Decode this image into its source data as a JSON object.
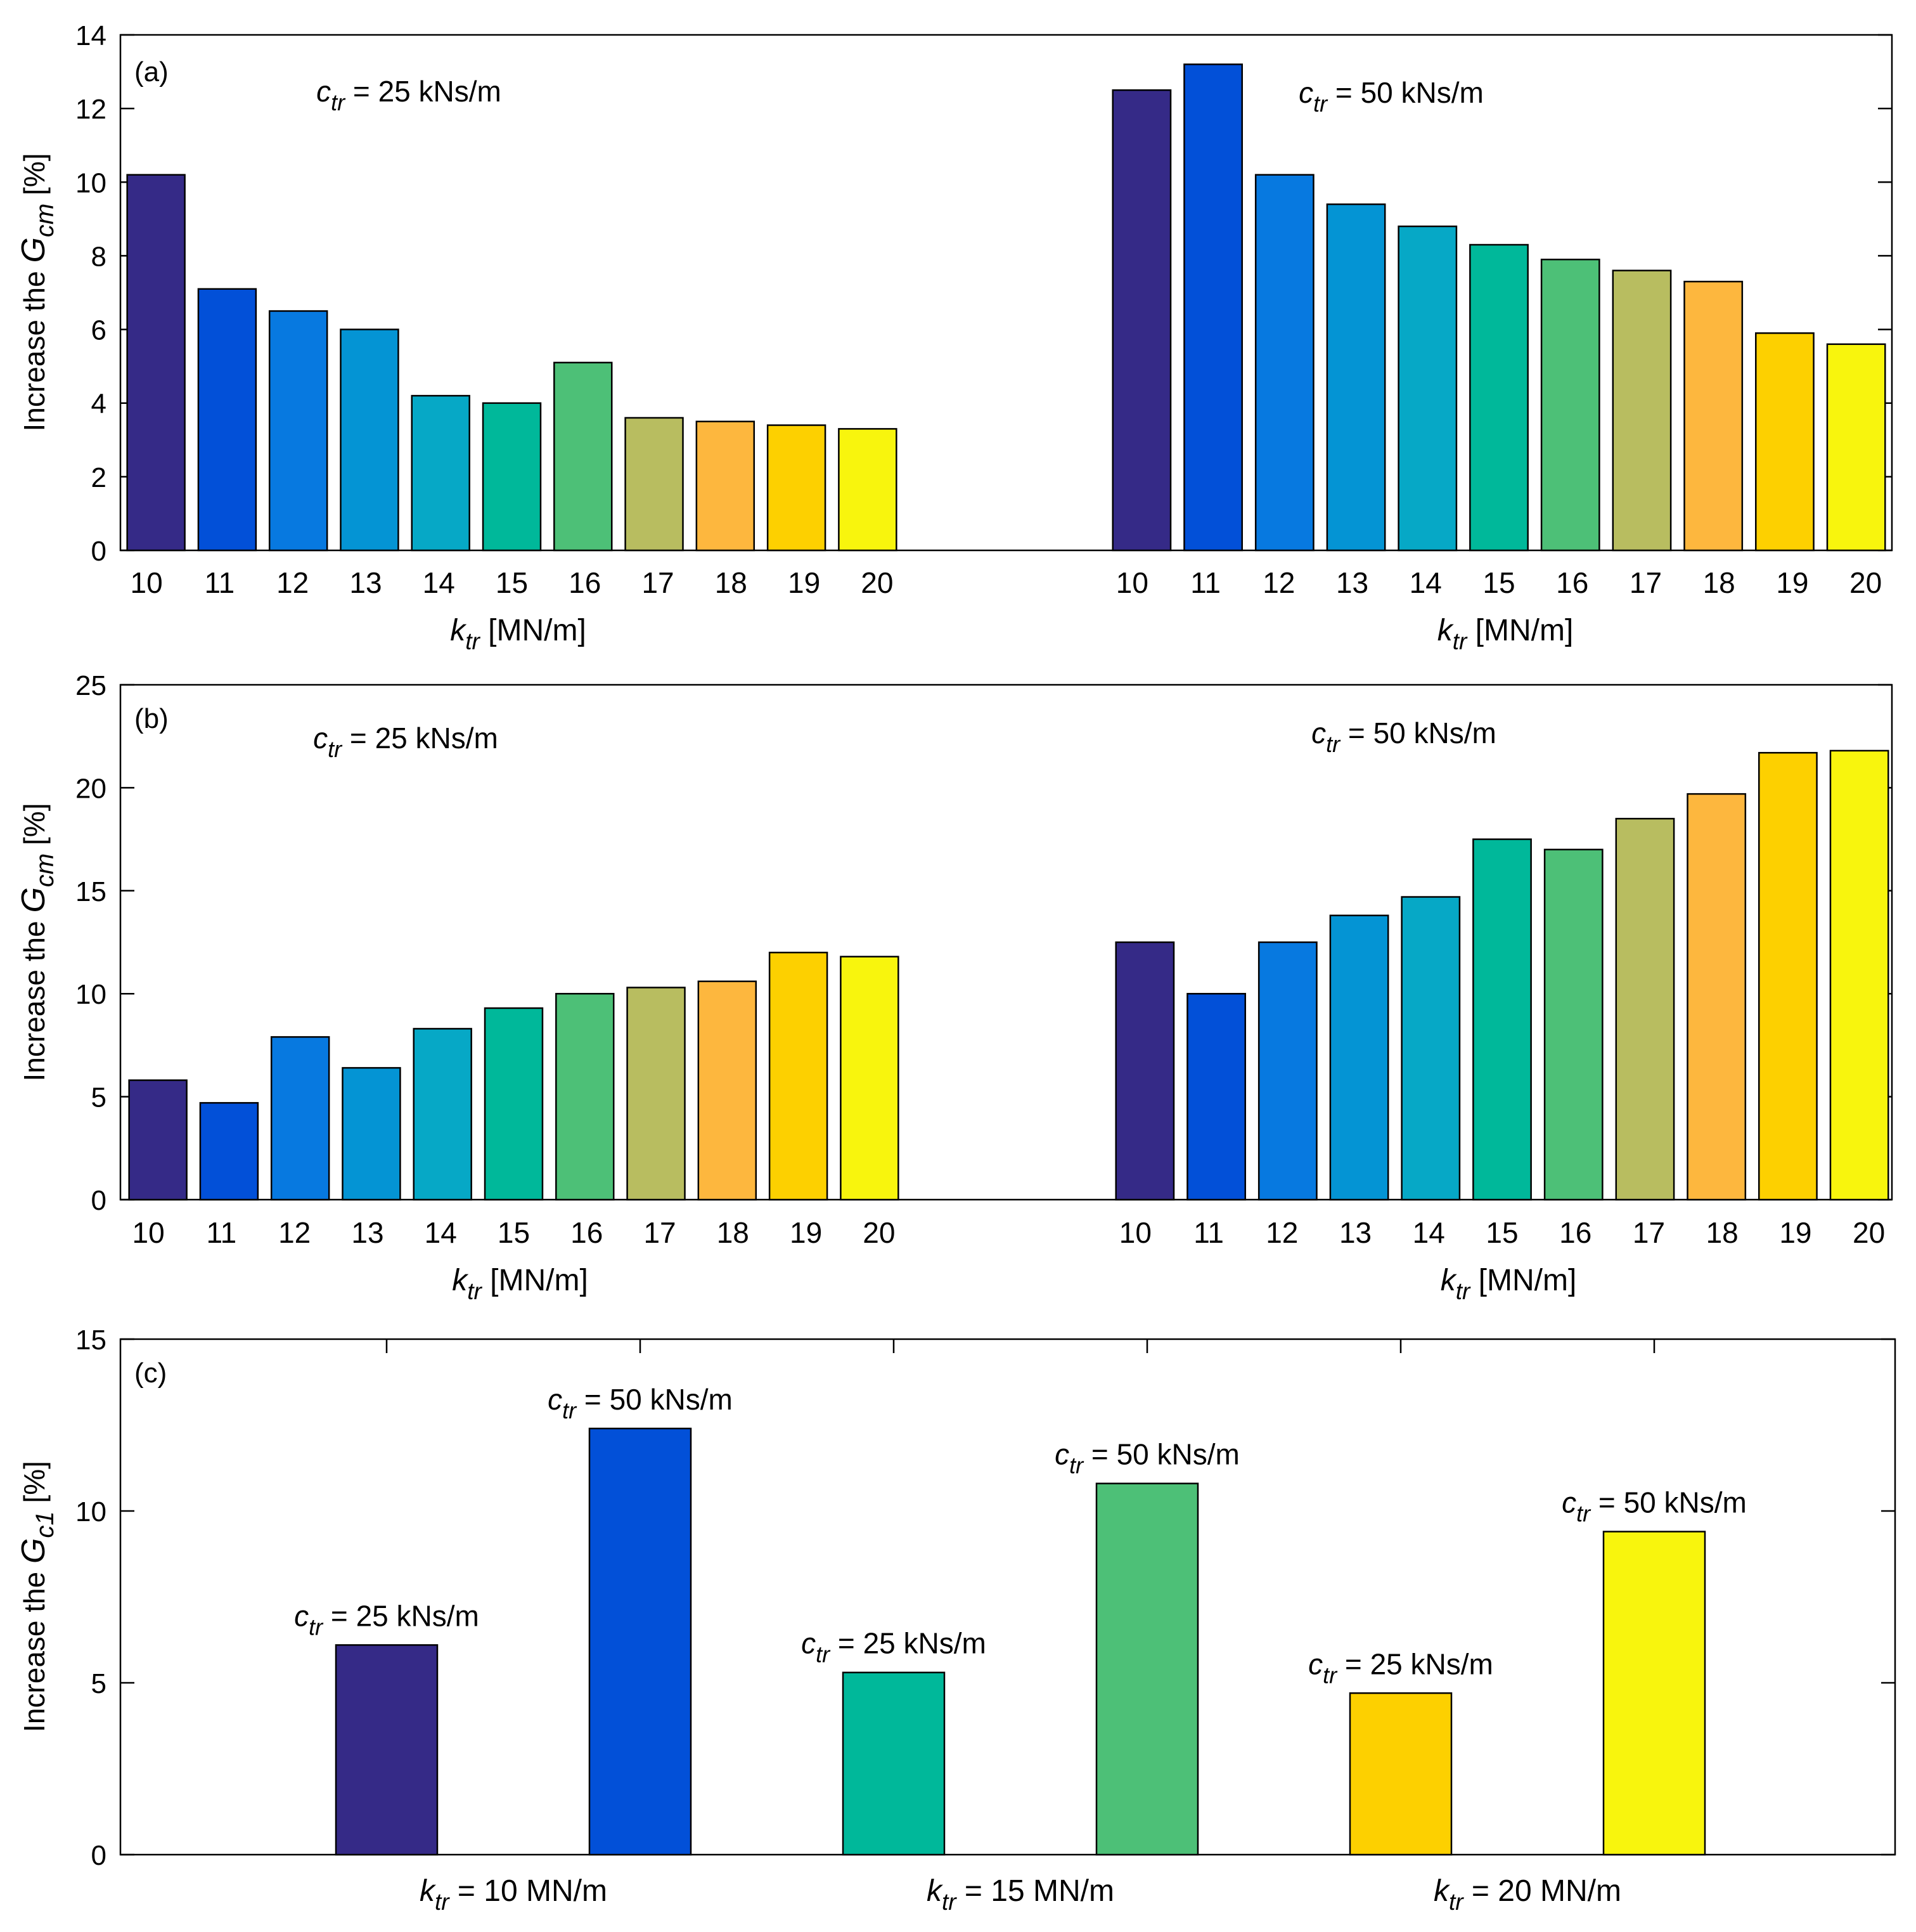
{
  "figure": {
    "colors": [
      "#352a87",
      "#0250d8",
      "#0779e0",
      "#0494d4",
      "#06a8c6",
      "#00b89a",
      "#4dc077",
      "#b8bd60",
      "#fdb73e",
      "#fdd000",
      "#f8f50d"
    ],
    "ylabel_prefix": "Increase the",
    "ylabel_suffix": "[%]",
    "xlabel_prefix": "k",
    "xlabel_sub": "tr",
    "xlabel_suffix": " [MN/m]"
  },
  "chart_data": [
    {
      "type": "bar",
      "panel": "(a)",
      "ylabel_var": "G",
      "ylabel_sub": "cm",
      "xlabel": "k_tr [MN/m]",
      "ylim": [
        0,
        14
      ],
      "yticks": [
        0,
        2,
        4,
        6,
        8,
        10,
        12,
        14
      ],
      "categories": [
        "10",
        "11",
        "12",
        "13",
        "14",
        "15",
        "16",
        "17",
        "18",
        "19",
        "20"
      ],
      "series": [
        {
          "name": "c_tr = 25 kNs/m",
          "label_var": "c",
          "label_sub": "tr",
          "label_text": " = 25 kNs/m",
          "values": [
            10.2,
            7.1,
            6.5,
            6.0,
            4.2,
            4.0,
            5.1,
            3.6,
            3.5,
            3.4,
            3.3
          ]
        },
        {
          "name": "c_tr = 50 kNs/m",
          "label_var": "c",
          "label_sub": "tr",
          "label_text": " = 50 kNs/m",
          "values": [
            12.5,
            13.2,
            10.2,
            9.4,
            8.8,
            8.3,
            7.9,
            7.6,
            7.3,
            5.9,
            5.6
          ]
        }
      ]
    },
    {
      "type": "bar",
      "panel": "(b)",
      "ylabel_var": "G",
      "ylabel_sub": "cm",
      "xlabel": "k_tr [MN/m]",
      "ylim": [
        0,
        25
      ],
      "yticks": [
        0,
        5,
        10,
        15,
        20,
        25
      ],
      "categories": [
        "10",
        "11",
        "12",
        "13",
        "14",
        "15",
        "16",
        "17",
        "18",
        "19",
        "20"
      ],
      "series": [
        {
          "name": "c_tr = 25 kNs/m",
          "label_var": "c",
          "label_sub": "tr",
          "label_text": " = 25 kNs/m",
          "values": [
            5.8,
            4.7,
            7.9,
            6.4,
            8.3,
            9.3,
            10.0,
            10.3,
            10.6,
            12.0,
            11.8
          ]
        },
        {
          "name": "c_tr = 50 kNs/m",
          "label_var": "c",
          "label_sub": "tr",
          "label_text": " = 50 kNs/m",
          "values": [
            12.5,
            10.0,
            12.5,
            13.8,
            14.7,
            17.5,
            17.0,
            18.5,
            19.7,
            21.7,
            21.8
          ]
        }
      ]
    },
    {
      "type": "bar",
      "panel": "(c)",
      "ylabel_var": "G",
      "ylabel_sub": "c1",
      "ylim": [
        0,
        15
      ],
      "yticks": [
        0,
        5,
        10,
        15
      ],
      "groups": [
        {
          "label_prefix": "k",
          "label_sub": "tr",
          "label_text": " = 10 MN/m",
          "bars": [
            {
              "label_var": "c",
              "label_sub": "tr",
              "label_text": " = 25 kNs/m",
              "value": 6.1
            },
            {
              "label_var": "c",
              "label_sub": "tr",
              "label_text": " = 50 kNs/m",
              "value": 12.4
            }
          ]
        },
        {
          "label_prefix": "k",
          "label_sub": "tr",
          "label_text": " = 15 MN/m",
          "bars": [
            {
              "label_var": "c",
              "label_sub": "tr",
              "label_text": " = 25 kNs/m",
              "value": 5.3
            },
            {
              "label_var": "c",
              "label_sub": "tr",
              "label_text": " = 50 kNs/m",
              "value": 10.8
            }
          ]
        },
        {
          "label_prefix": "k",
          "label_sub": "tr",
          "label_text": " = 20 MN/m",
          "bars": [
            {
              "label_var": "c",
              "label_sub": "tr",
              "label_text": " = 25 kNs/m",
              "value": 4.7
            },
            {
              "label_var": "c",
              "label_sub": "tr",
              "label_text": " = 50 kNs/m",
              "value": 9.4
            }
          ]
        }
      ],
      "bar_colors": [
        "#352a87",
        "#0250d8",
        "#00b89a",
        "#4dc077",
        "#fdd000",
        "#f8f50d"
      ]
    }
  ]
}
